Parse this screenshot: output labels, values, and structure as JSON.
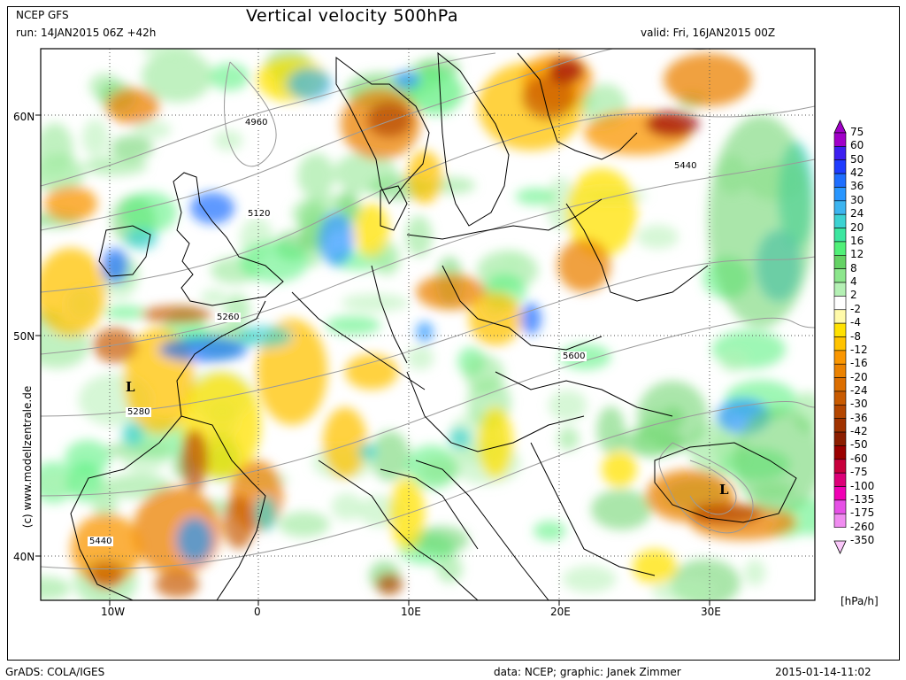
{
  "header": {
    "source": "NCEP GFS",
    "run": "run: 14JAN2015 06Z +42h",
    "title": "Vertical velocity 500hPa",
    "valid": "valid: Fri, 16JAN2015 00Z"
  },
  "map": {
    "lat_labels": [
      "60N",
      "50N",
      "40N"
    ],
    "lon_labels": [
      "10W",
      "0",
      "10E",
      "20E",
      "30E"
    ],
    "contour_labels": [
      "4960",
      "5120",
      "5260",
      "5280",
      "5440",
      "5440",
      "5600"
    ],
    "pressure_centers": [
      "L",
      "L"
    ],
    "watermark": "(c) www.modellzentrale.de"
  },
  "legend": {
    "unit": "[hPa/h]",
    "levels": [
      "75",
      "60",
      "50",
      "42",
      "36",
      "30",
      "24",
      "20",
      "16",
      "12",
      "8",
      "4",
      "2",
      "-2",
      "-4",
      "-8",
      "-12",
      "-16",
      "-20",
      "-24",
      "-30",
      "-36",
      "-42",
      "-50",
      "-60",
      "-75",
      "-100",
      "-135",
      "-175",
      "-260",
      "-350"
    ],
    "colors": [
      "#a000c8",
      "#3c1ef0",
      "#1e3cff",
      "#1e6eff",
      "#2896ff",
      "#3cb4f0",
      "#3cd2d2",
      "#3ce6a0",
      "#50f078",
      "#64d264",
      "#8ce68c",
      "#b4f0b4",
      "#ffffff",
      "#fffaaa",
      "#ffe100",
      "#ffc300",
      "#fa9600",
      "#eb8200",
      "#dc6e00",
      "#c85a00",
      "#b44600",
      "#a03200",
      "#8c1e00",
      "#9b0000",
      "#c8003c",
      "#dc0078",
      "#f000b4",
      "#e650e6",
      "#f08cf0",
      "#fac8fa"
    ]
  },
  "footer": {
    "grads": "GrADS: COLA/IGES",
    "credits": "data: NCEP; graphic: Janek Zimmer",
    "timestamp": "2015-01-14-11:02"
  }
}
